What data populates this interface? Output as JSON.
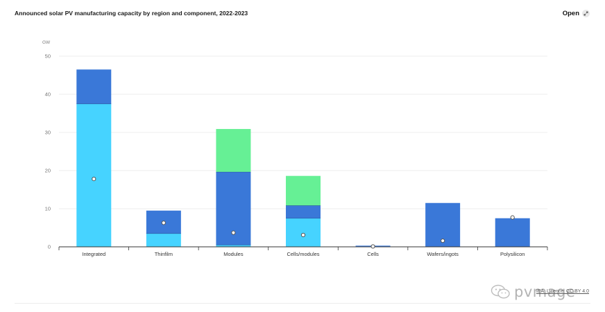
{
  "header": {
    "title": "Announced solar PV manufacturing capacity by region and component, 2022-2023",
    "open_label": "Open"
  },
  "chart_data": {
    "type": "bar",
    "stacked": true,
    "title": "Announced solar PV manufacturing capacity by region and component, 2022-2023",
    "ylabel": "GW",
    "xlabel": "",
    "ylim": [
      0,
      50
    ],
    "yticks": [
      0,
      10,
      20,
      30,
      40,
      50
    ],
    "grid": true,
    "legend": "none",
    "categories": [
      "Integrated",
      "Thinfilm",
      "Modules",
      "Cells/modules",
      "Cells",
      "Wafers/ingots",
      "Polysilicon"
    ],
    "series": [
      {
        "color": "#46d3ff",
        "values": [
          37.5,
          3.5,
          0.5,
          7.5,
          0,
          0,
          0
        ]
      },
      {
        "color": "#3a78d8",
        "values": [
          9.0,
          6.0,
          19.1,
          3.3,
          0.3,
          11.5,
          7.5
        ]
      },
      {
        "color": "#66f095",
        "values": [
          0,
          0,
          11.3,
          7.8,
          0,
          0,
          0
        ]
      }
    ],
    "markers": [
      17.8,
      6.3,
      3.7,
      3.1,
      0.1,
      1.6,
      7.7
    ]
  },
  "footer": {
    "license": "IEA. Licence: CC BY 4.0",
    "watermark": "pvmage"
  }
}
